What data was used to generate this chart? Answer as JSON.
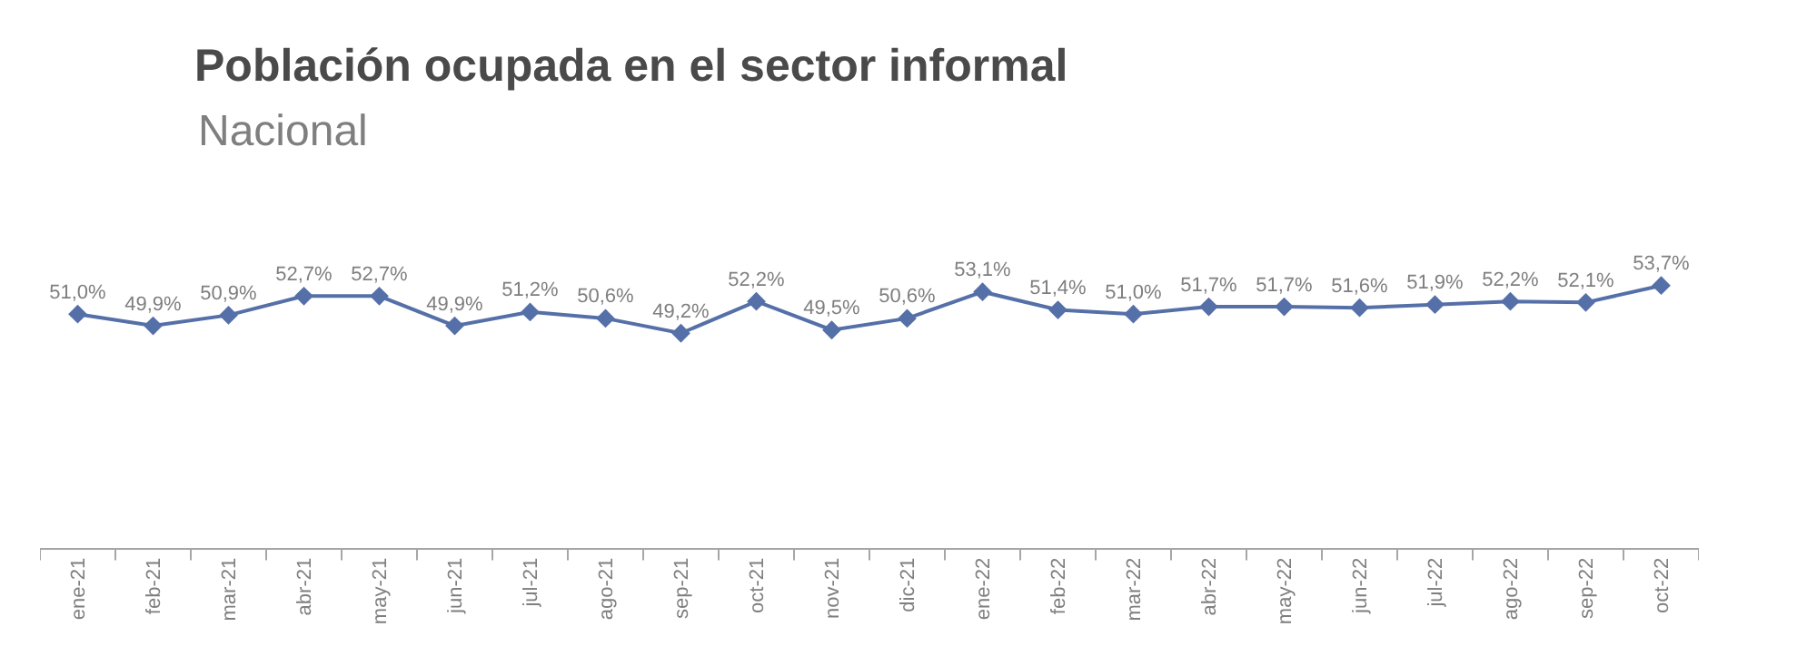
{
  "chart_data": {
    "type": "line",
    "title": "Población ocupada en el sector informal",
    "subtitle": "Nacional",
    "categories": [
      "ene-21",
      "feb-21",
      "mar-21",
      "abr-21",
      "may-21",
      "jun-21",
      "jul-21",
      "ago-21",
      "sep-21",
      "oct-21",
      "nov-21",
      "dic-21",
      "ene-22",
      "feb-22",
      "mar-22",
      "abr-22",
      "may-22",
      "jun-22",
      "jul-22",
      "ago-22",
      "sep-22",
      "oct-22"
    ],
    "series": [
      {
        "color": "#5570a8",
        "values": [
          51.0,
          49.9,
          50.9,
          52.7,
          52.7,
          49.9,
          51.2,
          50.6,
          49.2,
          52.2,
          49.5,
          50.6,
          53.1,
          51.4,
          51.0,
          51.7,
          51.7,
          51.6,
          51.9,
          52.2,
          52.1,
          53.7
        ],
        "value_labels": [
          "51,0%",
          "49,9%",
          "50,9%",
          "52,7%",
          "52,7%",
          "49,9%",
          "51,2%",
          "50,6%",
          "49,2%",
          "52,2%",
          "49,5%",
          "50,6%",
          "53,1%",
          "51,4%",
          "51,0%",
          "51,7%",
          "51,7%",
          "51,6%",
          "51,9%",
          "52,2%",
          "52,1%",
          "53,7%"
        ]
      }
    ],
    "tick_labels": "x",
    "marker": "diamond",
    "line_style": "solid"
  }
}
